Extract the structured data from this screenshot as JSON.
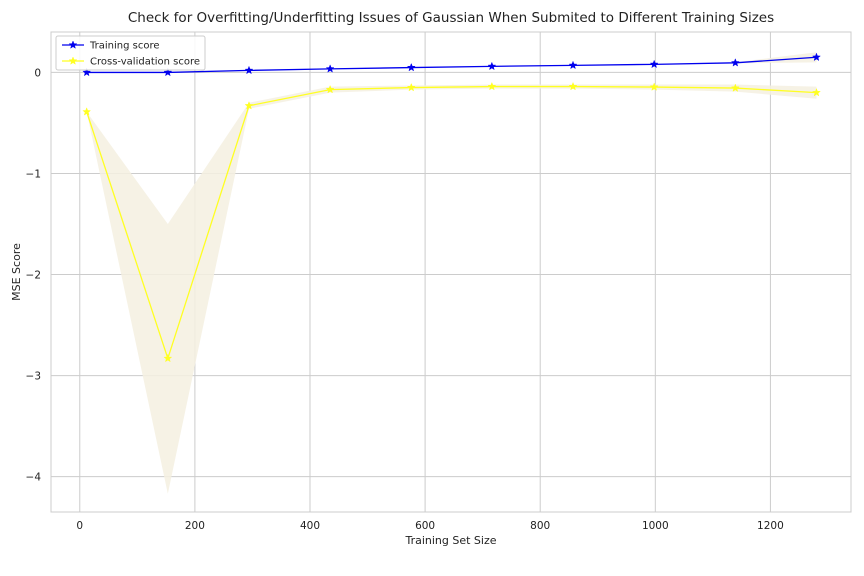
{
  "chart_data": {
    "type": "line",
    "title": "Check for Overfitting/Underfitting Issues of Gaussian When Submited to Different Training Sizes",
    "xlabel": "Training Set Size",
    "ylabel": "MSE Score",
    "xlim": [
      -50,
      1340
    ],
    "ylim": [
      -4.35,
      0.4
    ],
    "xticks": [
      0,
      200,
      400,
      600,
      800,
      1000,
      1200
    ],
    "yticks": [
      0,
      -1,
      -2,
      -3,
      -4
    ],
    "xtick_labels": [
      "0",
      "200",
      "400",
      "600",
      "800",
      "1000",
      "1200"
    ],
    "ytick_labels": [
      "0",
      "−1",
      "−2",
      "−3",
      "−4"
    ],
    "grid": true,
    "legend_position": "top-left",
    "x": [
      12,
      153,
      294,
      435,
      576,
      716,
      857,
      998,
      1139,
      1280
    ],
    "series": [
      {
        "name": "Training score",
        "color": "#0000ee",
        "marker": "star",
        "values": [
          0.0,
          0.0,
          0.02,
          0.035,
          0.048,
          0.06,
          0.07,
          0.08,
          0.095,
          0.15
        ],
        "band_upper": [
          0.0,
          0.0,
          0.02,
          0.035,
          0.05,
          0.062,
          0.072,
          0.085,
          0.1,
          0.2
        ],
        "band_lower": [
          0.0,
          0.0,
          0.02,
          0.035,
          0.046,
          0.058,
          0.068,
          0.075,
          0.09,
          0.1
        ]
      },
      {
        "name": "Cross-validation score",
        "color": "#ffff22",
        "marker": "star",
        "values": [
          -0.39,
          -2.83,
          -0.33,
          -0.17,
          -0.15,
          -0.14,
          -0.14,
          -0.145,
          -0.155,
          -0.2
        ],
        "band_upper": [
          -0.39,
          -1.5,
          -0.3,
          -0.14,
          -0.13,
          -0.12,
          -0.12,
          -0.12,
          -0.12,
          -0.14
        ],
        "band_lower": [
          -0.39,
          -4.17,
          -0.36,
          -0.2,
          -0.17,
          -0.16,
          -0.16,
          -0.17,
          -0.19,
          -0.26
        ]
      }
    ],
    "band_color": "#f5f0e1"
  }
}
